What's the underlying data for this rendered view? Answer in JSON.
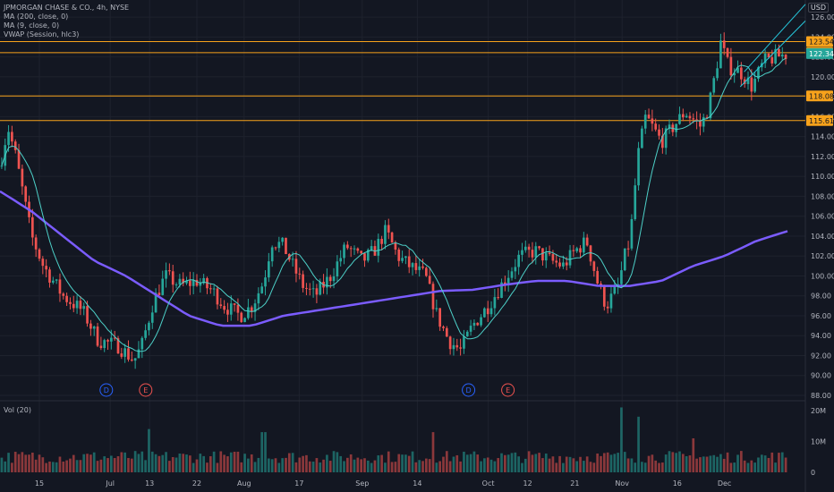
{
  "header": {
    "title": "JPMORGAN CHASE & CO., 4h, NYSE",
    "indicators": [
      "MA (200, close, 0)",
      "MA (9, close, 0)",
      "VWAP (Session, hlc3)"
    ],
    "currency": "USD",
    "volume_label": "Vol (20)"
  },
  "colors": {
    "background": "#131722",
    "up": "#26a69a",
    "down": "#ef5350",
    "ma200": "#7b5cff",
    "ma9": "#4dd0c8",
    "hline": "#f7a21b",
    "wedge": "#26c6da",
    "grid": "#1e222d"
  },
  "chart_data": {
    "type": "candlestick",
    "title": "JPMORGAN CHASE & CO., 4h, NYSE",
    "price_axis": {
      "ylim": [
        88,
        127
      ],
      "ticks": [
        88,
        90,
        92,
        94,
        96,
        98,
        100,
        102,
        104,
        106,
        108,
        110,
        112,
        114,
        116,
        118,
        120,
        122,
        124,
        126
      ],
      "tick_labels": [
        "88.00",
        "90.00",
        "92.00",
        "94.00",
        "96.00",
        "98.00",
        "100.00",
        "102.00",
        "104.00",
        "106.00",
        "108.00",
        "110.00",
        "112.00",
        "114.00",
        "116.00",
        "118.00",
        "120.00",
        "122.00",
        "124.00",
        "126.00"
      ]
    },
    "time_axis": {
      "labels": [
        {
          "t": 0.05,
          "label": "15"
        },
        {
          "t": 0.14,
          "label": "Jul"
        },
        {
          "t": 0.19,
          "label": "13"
        },
        {
          "t": 0.25,
          "label": "22"
        },
        {
          "t": 0.31,
          "label": "Aug"
        },
        {
          "t": 0.38,
          "label": "17"
        },
        {
          "t": 0.46,
          "label": "Sep"
        },
        {
          "t": 0.53,
          "label": "14"
        },
        {
          "t": 0.62,
          "label": "Oct"
        },
        {
          "t": 0.67,
          "label": "12"
        },
        {
          "t": 0.73,
          "label": "21"
        },
        {
          "t": 0.79,
          "label": "Nov"
        },
        {
          "t": 0.86,
          "label": "16"
        },
        {
          "t": 0.92,
          "label": "Dec"
        }
      ]
    },
    "price_path": [
      [
        0.0,
        111.0
      ],
      [
        0.01,
        115.0
      ],
      [
        0.02,
        112.0
      ],
      [
        0.04,
        104.0
      ],
      [
        0.055,
        101.0
      ],
      [
        0.08,
        98.0
      ],
      [
        0.105,
        96.5
      ],
      [
        0.125,
        93.5
      ],
      [
        0.15,
        93.0
      ],
      [
        0.17,
        91.5
      ],
      [
        0.18,
        93.0
      ],
      [
        0.195,
        97.5
      ],
      [
        0.21,
        100.0
      ],
      [
        0.23,
        99.0
      ],
      [
        0.25,
        99.5
      ],
      [
        0.27,
        98.5
      ],
      [
        0.285,
        97.0
      ],
      [
        0.305,
        96.0
      ],
      [
        0.32,
        97.0
      ],
      [
        0.335,
        99.5
      ],
      [
        0.345,
        103.5
      ],
      [
        0.36,
        103.0
      ],
      [
        0.375,
        100.5
      ],
      [
        0.385,
        99.0
      ],
      [
        0.4,
        98.0
      ],
      [
        0.42,
        100.0
      ],
      [
        0.44,
        103.0
      ],
      [
        0.46,
        101.5
      ],
      [
        0.475,
        102.5
      ],
      [
        0.49,
        104.5
      ],
      [
        0.505,
        102.0
      ],
      [
        0.52,
        101.0
      ],
      [
        0.54,
        100.0
      ],
      [
        0.555,
        96.0
      ],
      [
        0.57,
        93.5
      ],
      [
        0.585,
        92.5
      ],
      [
        0.6,
        95.0
      ],
      [
        0.62,
        97.0
      ],
      [
        0.64,
        99.5
      ],
      [
        0.66,
        102.0
      ],
      [
        0.68,
        102.5
      ],
      [
        0.7,
        101.5
      ],
      [
        0.715,
        101.0
      ],
      [
        0.73,
        102.5
      ],
      [
        0.745,
        103.5
      ],
      [
        0.76,
        99.0
      ],
      [
        0.77,
        97.0
      ],
      [
        0.785,
        99.0
      ],
      [
        0.795,
        102.5
      ],
      [
        0.8,
        103.5
      ],
      [
        0.81,
        112.0
      ],
      [
        0.82,
        116.0
      ],
      [
        0.84,
        113.5
      ],
      [
        0.855,
        115.0
      ],
      [
        0.87,
        116.5
      ],
      [
        0.89,
        115.0
      ],
      [
        0.9,
        117.0
      ],
      [
        0.91,
        121.0
      ],
      [
        0.915,
        123.5
      ],
      [
        0.925,
        121.0
      ],
      [
        0.94,
        120.5
      ],
      [
        0.955,
        119.0
      ],
      [
        0.97,
        121.5
      ],
      [
        0.985,
        122.0
      ],
      [
        1.0,
        122.3
      ]
    ],
    "ma200_path": [
      [
        0.0,
        108.5
      ],
      [
        0.04,
        106.5
      ],
      [
        0.08,
        104.0
      ],
      [
        0.12,
        101.5
      ],
      [
        0.16,
        100.0
      ],
      [
        0.2,
        98.0
      ],
      [
        0.24,
        96.0
      ],
      [
        0.28,
        95.0
      ],
      [
        0.32,
        95.0
      ],
      [
        0.36,
        96.0
      ],
      [
        0.4,
        96.5
      ],
      [
        0.44,
        97.0
      ],
      [
        0.48,
        97.5
      ],
      [
        0.52,
        98.0
      ],
      [
        0.56,
        98.5
      ],
      [
        0.6,
        98.6
      ],
      [
        0.64,
        99.1
      ],
      [
        0.68,
        99.5
      ],
      [
        0.72,
        99.5
      ],
      [
        0.76,
        99.0
      ],
      [
        0.8,
        99.0
      ],
      [
        0.84,
        99.5
      ],
      [
        0.88,
        101.0
      ],
      [
        0.92,
        102.0
      ],
      [
        0.96,
        103.5
      ],
      [
        1.0,
        104.5
      ]
    ],
    "horizontal_levels": [
      {
        "value": 123.54,
        "label": "123.54"
      },
      {
        "value": 122.43,
        "label": "122.43"
      },
      {
        "value": 118.08,
        "label": "118.08"
      },
      {
        "value": 115.61,
        "label": "115.61"
      }
    ],
    "last_price": {
      "value": 122.34,
      "label": "122.34"
    },
    "wedge_lines": [
      {
        "x0": 0.94,
        "y0": 119.0,
        "x1": 1.0,
        "y1": 123.8
      },
      {
        "x0": 0.945,
        "y0": 120.5,
        "x1": 1.0,
        "y1": 125.3
      }
    ],
    "events": [
      {
        "t": 0.135,
        "label": "D"
      },
      {
        "t": 0.185,
        "label": "E"
      },
      {
        "t": 0.595,
        "label": "D"
      },
      {
        "t": 0.645,
        "label": "E"
      }
    ],
    "volume": {
      "label": "Vol (20)",
      "ylim": [
        0,
        22
      ],
      "ticks": [
        0,
        10,
        20
      ],
      "tick_labels": [
        "0",
        "10M",
        "20M"
      ],
      "spikes": [
        {
          "t": 0.19,
          "value": 14
        },
        {
          "t": 0.335,
          "value": 13
        },
        {
          "t": 0.55,
          "value": 13
        },
        {
          "t": 0.79,
          "value": 21
        },
        {
          "t": 0.81,
          "value": 18
        },
        {
          "t": 0.88,
          "value": 11
        }
      ]
    }
  }
}
